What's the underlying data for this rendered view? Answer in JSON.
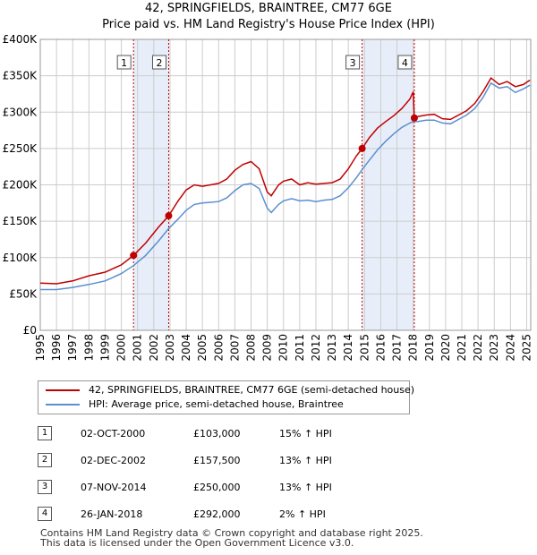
{
  "title": "42, SPRINGFIELDS, BRAINTREE, CM77 6GE",
  "subtitle": "Price paid vs. HM Land Registry's House Price Index (HPI)",
  "legend": {
    "property": "42, SPRINGFIELDS, BRAINTREE, CM77 6GE (semi-detached house)",
    "hpi": "HPI: Average price, semi-detached house, Braintree"
  },
  "colors": {
    "property": "#c00000",
    "hpi": "#5b8fd0",
    "band": "#e8eef9",
    "grid": "#cccccc"
  },
  "sales": [
    {
      "num": "1",
      "date": "02-OCT-2000",
      "price": "£103,000",
      "hpi": "15% ↑ HPI"
    },
    {
      "num": "2",
      "date": "02-DEC-2002",
      "price": "£157,500",
      "hpi": "13% ↑ HPI"
    },
    {
      "num": "3",
      "date": "07-NOV-2014",
      "price": "£250,000",
      "hpi": "13% ↑ HPI"
    },
    {
      "num": "4",
      "date": "26-JAN-2018",
      "price": "£292,000",
      "hpi": "2% ↑ HPI"
    }
  ],
  "footer": {
    "line1": "Contains HM Land Registry data © Crown copyright and database right 2025.",
    "line2": "This data is licensed under the Open Government Licence v3.0."
  },
  "chart_data": {
    "type": "line",
    "title": "42, SPRINGFIELDS, BRAINTREE, CM77 6GE",
    "subtitle": "Price paid vs. HM Land Registry's House Price Index (HPI)",
    "xlabel": "",
    "ylabel": "",
    "xlim": [
      1995,
      2025.25
    ],
    "ylim": [
      0,
      400000
    ],
    "y_ticks": [
      0,
      50000,
      100000,
      150000,
      200000,
      250000,
      300000,
      350000,
      400000
    ],
    "y_tick_labels": [
      "£0",
      "£50K",
      "£100K",
      "£150K",
      "£200K",
      "£250K",
      "£300K",
      "£350K",
      "£400K"
    ],
    "x_ticks": [
      1995,
      1996,
      1997,
      1998,
      1999,
      2000,
      2001,
      2002,
      2003,
      2004,
      2005,
      2006,
      2007,
      2008,
      2009,
      2010,
      2011,
      2012,
      2013,
      2014,
      2015,
      2016,
      2017,
      2018,
      2019,
      2020,
      2021,
      2022,
      2023,
      2024,
      2025
    ],
    "x_tick_labels": [
      "1995",
      "1996",
      "1997",
      "1998",
      "1999",
      "2000",
      "2001",
      "2002",
      "2003",
      "2004",
      "2005",
      "2006",
      "2007",
      "2008",
      "2009",
      "2010",
      "2011",
      "2012",
      "2013",
      "2014",
      "2015",
      "2016",
      "2017",
      "2018",
      "2019",
      "2020",
      "2021",
      "2022",
      "2023",
      "2024",
      "2025"
    ],
    "grid": true,
    "shaded_ranges": [
      [
        2000.75,
        2002.92
      ],
      [
        2014.85,
        2018.07
      ]
    ],
    "sale_markers": [
      {
        "label": "1",
        "x": 2000.75,
        "y": 103000
      },
      {
        "label": "2",
        "x": 2002.92,
        "y": 157500
      },
      {
        "label": "3",
        "x": 2014.85,
        "y": 250000
      },
      {
        "label": "4",
        "x": 2018.07,
        "y": 292000
      }
    ],
    "series": [
      {
        "name": "42, SPRINGFIELDS, BRAINTREE, CM77 6GE (semi-detached house)",
        "x": [
          1995.0,
          1996.0,
          1997.0,
          1998.0,
          1999.0,
          2000.0,
          2000.75,
          2001.5,
          2002.3,
          2002.92,
          2003.5,
          2004.0,
          2004.5,
          2005.0,
          2005.5,
          2006.0,
          2006.5,
          2007.0,
          2007.5,
          2008.0,
          2008.5,
          2009.0,
          2009.25,
          2009.7,
          2010.0,
          2010.5,
          2011.0,
          2011.5,
          2012.0,
          2012.5,
          2013.0,
          2013.5,
          2014.0,
          2014.5,
          2014.85,
          2015.3,
          2015.8,
          2016.3,
          2016.8,
          2017.3,
          2017.8,
          2018.0,
          2018.07,
          2018.3,
          2018.8,
          2019.3,
          2019.8,
          2020.3,
          2020.8,
          2021.3,
          2021.8,
          2022.3,
          2022.8,
          2023.3,
          2023.8,
          2024.3,
          2024.8,
          2025.2
        ],
        "values": [
          65000,
          64000,
          68000,
          75000,
          80000,
          90000,
          103000,
          120000,
          142000,
          157500,
          178000,
          193000,
          200000,
          198000,
          200000,
          202000,
          208000,
          220000,
          228000,
          232000,
          222000,
          190000,
          185000,
          200000,
          205000,
          208000,
          200000,
          203000,
          201000,
          202000,
          203000,
          208000,
          222000,
          240000,
          250000,
          265000,
          278000,
          287000,
          295000,
          305000,
          318000,
          328000,
          292000,
          294000,
          296000,
          297000,
          291000,
          290000,
          296000,
          302000,
          312000,
          328000,
          347000,
          338000,
          342000,
          335000,
          338000,
          344000
        ]
      },
      {
        "name": "HPI: Average price, semi-detached house, Braintree",
        "x": [
          1995.0,
          1996.0,
          1997.0,
          1998.0,
          1999.0,
          2000.0,
          2000.75,
          2001.5,
          2002.3,
          2002.92,
          2003.5,
          2004.0,
          2004.5,
          2005.0,
          2005.5,
          2006.0,
          2006.5,
          2007.0,
          2007.5,
          2008.0,
          2008.5,
          2009.0,
          2009.25,
          2009.7,
          2010.0,
          2010.5,
          2011.0,
          2011.5,
          2012.0,
          2012.5,
          2013.0,
          2013.5,
          2014.0,
          2014.5,
          2014.85,
          2015.3,
          2015.8,
          2016.3,
          2016.8,
          2017.3,
          2017.8,
          2018.0,
          2018.07,
          2018.3,
          2018.8,
          2019.3,
          2019.8,
          2020.3,
          2020.8,
          2021.3,
          2021.8,
          2022.3,
          2022.8,
          2023.3,
          2023.8,
          2024.3,
          2024.8,
          2025.2
        ],
        "values": [
          56000,
          56000,
          59000,
          63000,
          68000,
          78000,
          89000,
          103000,
          123000,
          140000,
          153000,
          165000,
          173000,
          175000,
          176000,
          177000,
          182000,
          192000,
          200000,
          202000,
          195000,
          168000,
          162000,
          173000,
          178000,
          181000,
          178000,
          179000,
          177000,
          179000,
          180000,
          185000,
          196000,
          210000,
          221000,
          234000,
          248000,
          260000,
          270000,
          279000,
          285000,
          287000,
          287000,
          287000,
          289000,
          289000,
          285000,
          284000,
          290000,
          296000,
          305000,
          320000,
          340000,
          333000,
          335000,
          327000,
          332000,
          337000
        ]
      }
    ]
  }
}
